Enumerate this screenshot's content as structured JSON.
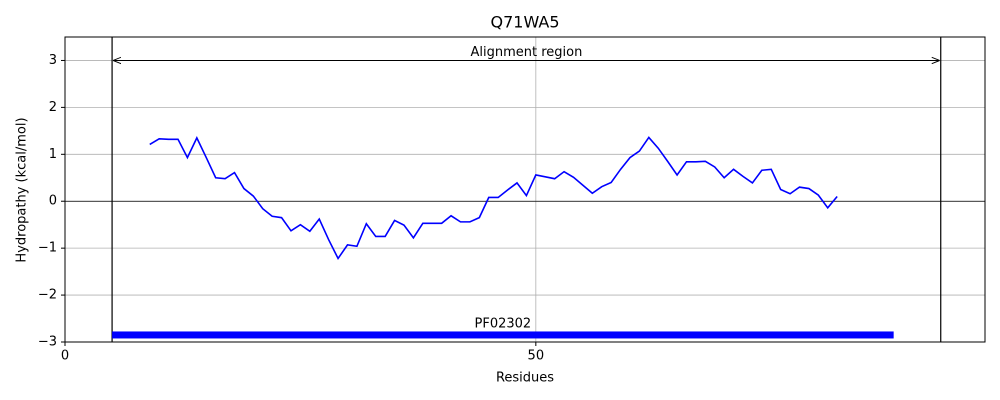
{
  "chart_data": {
    "type": "line",
    "title": "Q71WA5",
    "xlabel": "Residues",
    "ylabel": "Hydropathy (kcal/mol)",
    "xlim": [
      0,
      97.7
    ],
    "ylim": [
      -3,
      3.5
    ],
    "xticks": [
      0,
      50
    ],
    "yticks": [
      {
        "value": -3,
        "label": "−3"
      },
      {
        "value": -2,
        "label": "−2"
      },
      {
        "value": -1,
        "label": "−1"
      },
      0,
      1,
      2,
      3
    ],
    "grid": true,
    "x": [
      9,
      10,
      11,
      12,
      13,
      14,
      15,
      16,
      17,
      18,
      19,
      20,
      21,
      22,
      23,
      24,
      25,
      26,
      27,
      28,
      29,
      30,
      31,
      32,
      33,
      34,
      35,
      36,
      37,
      38,
      39,
      40,
      41,
      42,
      43,
      44,
      45,
      46,
      47,
      48,
      49,
      50,
      51,
      52,
      53,
      54,
      55,
      56,
      57,
      58,
      59,
      60,
      61,
      62,
      63,
      64,
      65,
      66,
      67,
      68,
      69,
      70,
      71,
      72,
      73,
      74,
      75,
      76,
      77,
      78,
      79,
      80,
      81,
      82
    ],
    "series": [
      {
        "color": "#0000ff",
        "values": [
          1.21,
          1.33,
          1.32,
          1.32,
          0.93,
          1.35,
          0.93,
          0.5,
          0.48,
          0.61,
          0.27,
          0.11,
          -0.16,
          -0.32,
          -0.35,
          -0.63,
          -0.5,
          -0.64,
          -0.38,
          -0.82,
          -1.22,
          -0.93,
          -0.96,
          -0.48,
          -0.75,
          -0.75,
          -0.41,
          -0.51,
          -0.78,
          -0.47,
          -0.47,
          -0.47,
          -0.31,
          -0.44,
          -0.44,
          -0.35,
          0.08,
          0.08,
          0.24,
          0.39,
          0.12,
          0.56,
          0.52,
          0.48,
          0.63,
          0.51,
          0.34,
          0.17,
          0.31,
          0.4,
          0.68,
          0.93,
          1.07,
          1.36,
          1.13,
          0.85,
          0.56,
          0.84,
          0.84,
          0.85,
          0.73,
          0.5,
          0.68,
          0.53,
          0.39,
          0.66,
          0.68,
          0.25,
          0.16,
          0.3,
          0.27,
          0.13,
          -0.14,
          0.1
        ]
      }
    ],
    "alignment": {
      "label": "Alignment region",
      "start": 5,
      "end": 93,
      "y": 3
    },
    "domains": [
      {
        "label": "PF02302",
        "start": 5,
        "end": 88,
        "y": -2.85,
        "color": "#0000ff"
      }
    ]
  }
}
